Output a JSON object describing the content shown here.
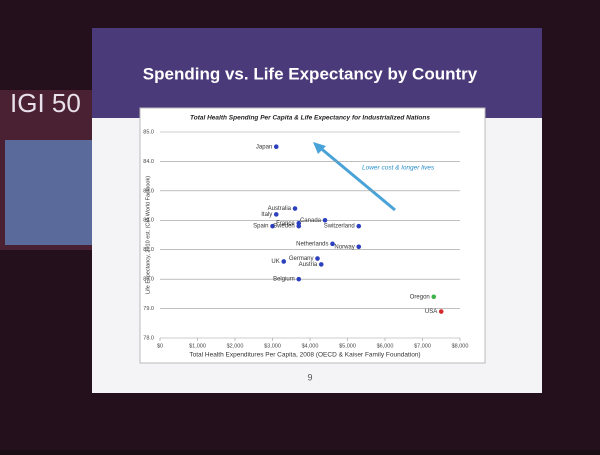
{
  "chart_data": {
    "type": "scatter",
    "brand": "IGI 50",
    "title": "Spending vs. Life Expectancy by Country",
    "subtitle": "Total Health Spending Per Capita & Life Expectancy for Industrialized Nations",
    "x_label": "Total Health Expenditures Per Capita, 2008 (OECD & Kaiser Family Foundation)",
    "y_label": "Life Expectancy, 2010 est. (CIA World Factbook)",
    "annotation": "Lower cost & longer lives",
    "page_number": "9",
    "labels": [
      "Japan",
      "Australia",
      "Italy",
      "Canada",
      "France",
      "Switzerland",
      "Spain",
      "Sweden",
      "Netherlands",
      "Norway",
      "Germany",
      "UK",
      "Austria",
      "Belgium",
      "Oregon",
      "USA"
    ],
    "x": [
      3100,
      3600,
      3100,
      4400,
      3700,
      5300,
      3000,
      3700,
      4600,
      5300,
      4200,
      3300,
      4300,
      3700,
      7300,
      7500
    ],
    "values": [
      84.5,
      82.4,
      82.2,
      82.0,
      81.9,
      81.8,
      81.8,
      81.8,
      81.2,
      81.1,
      80.7,
      80.6,
      80.5,
      80.0,
      79.4,
      78.9
    ],
    "colors": [
      "#2b3fbf",
      "#2b3fbf",
      "#2b3fbf",
      "#2b3fbf",
      "#2b3fbf",
      "#2b3fbf",
      "#2b3fbf",
      "#2b3fbf",
      "#2b3fbf",
      "#2b3fbf",
      "#2b3fbf",
      "#2b3fbf",
      "#2b3fbf",
      "#2b3fbf",
      "#3cb44b",
      "#d62828"
    ],
    "xlim": [
      0,
      8000
    ],
    "xticks": [
      {
        "value": 0,
        "label": "$0"
      },
      {
        "value": 1000,
        "label": "$1,000"
      },
      {
        "value": 2000,
        "label": "$2,000"
      },
      {
        "value": 3000,
        "label": "$3,000"
      },
      {
        "value": 4000,
        "label": "$4,000"
      },
      {
        "value": 5000,
        "label": "$5,000"
      },
      {
        "value": 6000,
        "label": "$6,000"
      },
      {
        "value": 7000,
        "label": "$7,000"
      },
      {
        "value": 8000,
        "label": "$8,000"
      }
    ],
    "ylim": [
      78,
      85
    ],
    "yticks": [
      {
        "value": 78,
        "label": "78.0"
      },
      {
        "value": 79,
        "label": "79.0"
      },
      {
        "value": 80,
        "label": "80.0"
      },
      {
        "value": 81,
        "label": "81.0"
      },
      {
        "value": 82,
        "label": "82.0"
      },
      {
        "value": 83,
        "label": "83.0"
      },
      {
        "value": 84,
        "label": "84.0"
      },
      {
        "value": 85,
        "label": "85.0"
      }
    ],
    "grid": true
  }
}
